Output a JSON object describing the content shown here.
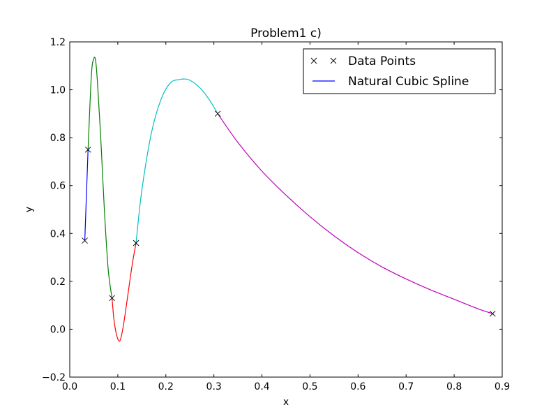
{
  "chart_data": {
    "type": "line",
    "title": "Problem1 c)",
    "xlabel": "x",
    "ylabel": "y",
    "xlim": [
      0.0,
      0.9
    ],
    "ylim": [
      -0.2,
      1.2
    ],
    "xticks": [
      "0.0",
      "0.1",
      "0.2",
      "0.3",
      "0.4",
      "0.5",
      "0.6",
      "0.7",
      "0.8",
      "0.9"
    ],
    "yticks": [
      "−0.2",
      "0.0",
      "0.2",
      "0.4",
      "0.6",
      "0.8",
      "1.0",
      "1.2"
    ],
    "grid": false,
    "legend_position": "top-right",
    "legend": [
      {
        "label": "Data Points",
        "marker": "x",
        "color": "#000000"
      },
      {
        "label": "Natural Cubic Spline",
        "marker": "line",
        "color": "#0000ff"
      }
    ],
    "data_points": {
      "name": "Data Points",
      "x": [
        0.0313,
        0.0381,
        0.088,
        0.138,
        0.308,
        0.88
      ],
      "y": [
        0.37,
        0.75,
        0.13,
        0.36,
        0.9,
        0.065
      ]
    },
    "spline_segments": [
      {
        "color": "#0000ff",
        "x": [
          0.0313,
          0.0381
        ],
        "y": [
          0.37,
          0.75
        ]
      },
      {
        "color": "#008000",
        "x": [
          0.0381,
          0.045,
          0.05,
          0.054,
          0.058,
          0.065,
          0.072,
          0.08,
          0.088
        ],
        "y": [
          0.75,
          1.06,
          1.13,
          1.12,
          1.02,
          0.78,
          0.5,
          0.25,
          0.13
        ]
      },
      {
        "color": "#ff0000",
        "x": [
          0.088,
          0.092,
          0.097,
          0.102,
          0.106,
          0.112,
          0.12,
          0.13,
          0.138
        ],
        "y": [
          0.13,
          0.04,
          -0.02,
          -0.048,
          -0.04,
          0.02,
          0.13,
          0.27,
          0.36
        ]
      },
      {
        "color": "#00bfbf",
        "x": [
          0.138,
          0.15,
          0.17,
          0.19,
          0.21,
          0.23,
          0.238,
          0.25,
          0.27,
          0.29,
          0.308
        ],
        "y": [
          0.36,
          0.58,
          0.82,
          0.96,
          1.03,
          1.043,
          1.045,
          1.04,
          1.01,
          0.96,
          0.9
        ]
      },
      {
        "color": "#bf00bf",
        "x": [
          0.308,
          0.35,
          0.4,
          0.45,
          0.5,
          0.55,
          0.6,
          0.65,
          0.7,
          0.75,
          0.8,
          0.85,
          0.88
        ],
        "y": [
          0.9,
          0.78,
          0.66,
          0.56,
          0.47,
          0.39,
          0.32,
          0.26,
          0.21,
          0.165,
          0.125,
          0.085,
          0.065
        ]
      }
    ]
  }
}
